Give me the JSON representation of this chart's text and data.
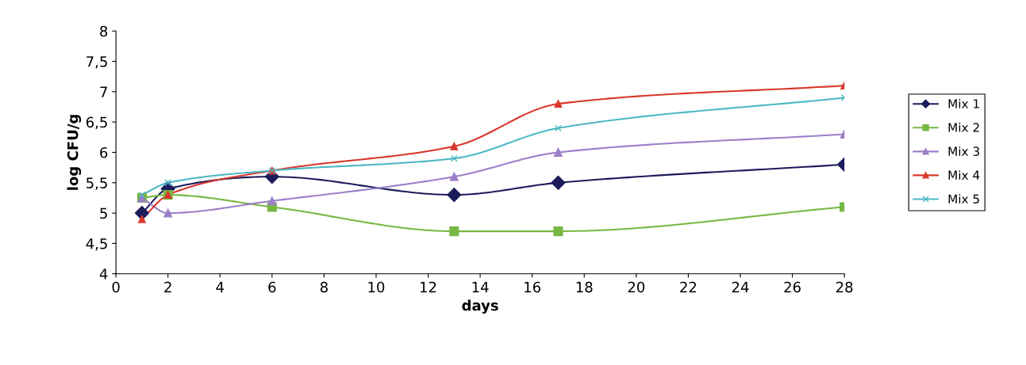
{
  "chart_data": {
    "type": "line",
    "xlabel": "days",
    "ylabel": "log CFU/g",
    "x": [
      1,
      2,
      6,
      13,
      17,
      28
    ],
    "series": [
      {
        "name": "Mix 1",
        "color": "#1c1c5c",
        "marker": "diamond",
        "values": [
          5.0,
          5.4,
          5.6,
          5.3,
          5.5,
          5.8
        ]
      },
      {
        "name": "Mix 2",
        "color": "#77b843",
        "marker": "square",
        "values": [
          5.25,
          5.3,
          5.1,
          4.7,
          4.7,
          5.1
        ]
      },
      {
        "name": "Mix 3",
        "color": "#9b7fc8",
        "marker": "triangle",
        "values": [
          5.25,
          5.0,
          5.2,
          5.6,
          6.0,
          6.3
        ]
      },
      {
        "name": "Mix 4",
        "color": "#d9372b",
        "marker": "triangle",
        "values": [
          4.9,
          5.3,
          5.7,
          6.1,
          6.8,
          7.1
        ]
      },
      {
        "name": "Mix 5",
        "color": "#4bb8c4",
        "marker": "cross",
        "values": [
          5.3,
          5.5,
          5.7,
          5.9,
          6.4,
          6.9
        ]
      }
    ],
    "xlim": [
      0,
      28
    ],
    "xticks": [
      0,
      2,
      4,
      6,
      8,
      10,
      12,
      14,
      16,
      18,
      20,
      22,
      24,
      26,
      28
    ],
    "ylim": [
      4,
      8
    ],
    "yticks": [
      4,
      {
        "value": 4.5,
        "label": "4,5"
      },
      5,
      {
        "value": 5.5,
        "label": "5,5"
      },
      6,
      {
        "value": 6.5,
        "label": "6,5"
      },
      7,
      {
        "value": 7.5,
        "label": "7,5"
      },
      8
    ],
    "grid": false,
    "legend": "right",
    "line_style": "solid"
  }
}
